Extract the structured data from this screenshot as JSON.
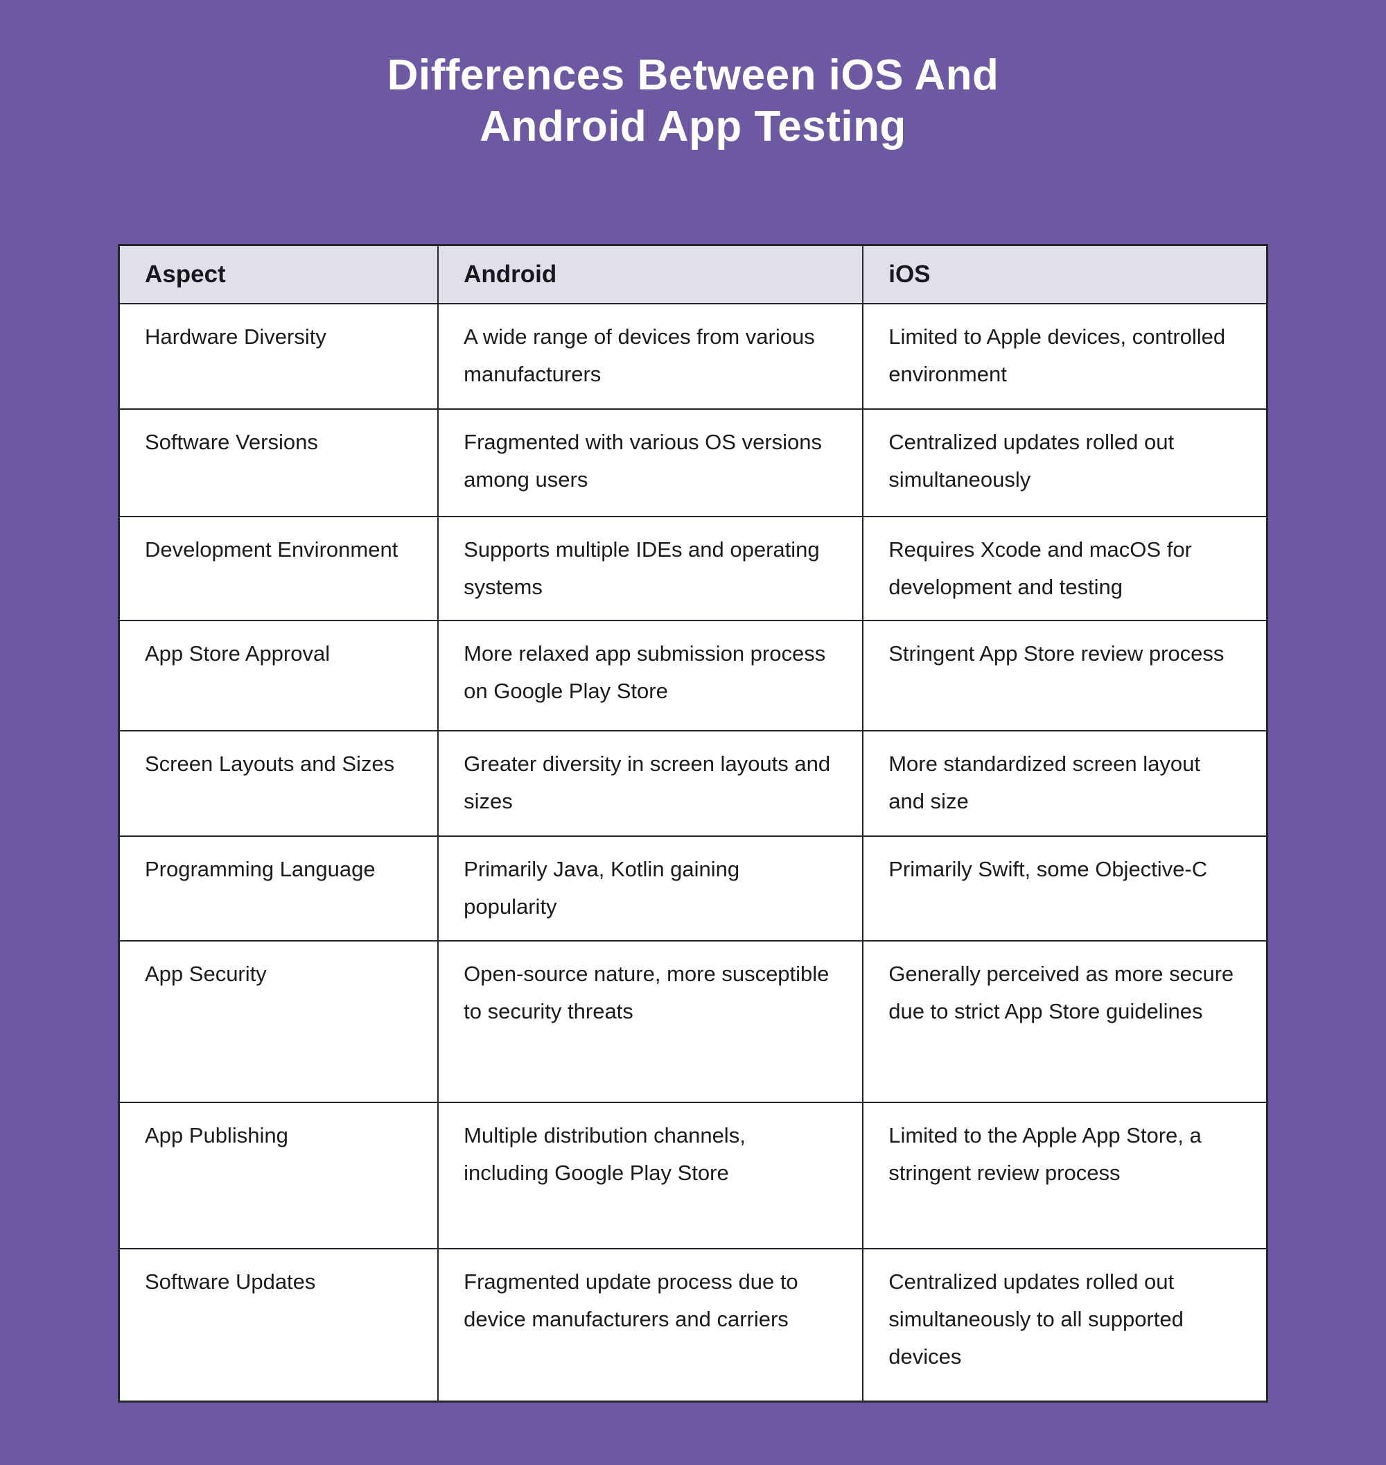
{
  "page": {
    "background_color": "#6d59a2",
    "title_color": "#ffffff",
    "title_line1": "Differences Between iOS And",
    "title_line2": "Android App Testing"
  },
  "table": {
    "header_bg_color": "#e2dfeb",
    "body_bg_color": "#ffffff",
    "border_color": "#26262e",
    "text_color": "#1b1b1f",
    "columns": [
      "Aspect",
      "Android",
      "iOS"
    ],
    "rows": [
      {
        "aspect": "Hardware Diversity",
        "android": "A wide range of devices from various manufacturers",
        "ios": "Limited to Apple devices, controlled environment"
      },
      {
        "aspect": "Software Versions",
        "android": "Fragmented with various OS versions among users",
        "ios": "Centralized updates rolled out simultaneously"
      },
      {
        "aspect": "Development Environment",
        "android": "Supports multiple IDEs and operating systems",
        "ios": "Requires Xcode and macOS for development and testing"
      },
      {
        "aspect": "App Store Approval",
        "android": "More relaxed app submission process on Google Play Store",
        "ios": "Stringent App Store review process"
      },
      {
        "aspect": "Screen Layouts and Sizes",
        "android": "Greater diversity in screen layouts and sizes",
        "ios": "More standardized screen layout and size"
      },
      {
        "aspect": "Programming Language",
        "android": "Primarily Java, Kotlin gaining popularity",
        "ios": "Primarily Swift, some Objective-C"
      },
      {
        "aspect": "App Security",
        "android": "Open-source nature, more susceptible to security threats",
        "ios": "Generally perceived as more secure due to strict App Store guidelines"
      },
      {
        "aspect": "App Publishing",
        "android": "Multiple distribution channels, including Google Play Store",
        "ios": "Limited to the Apple App Store, a stringent review process"
      },
      {
        "aspect": "Software Updates",
        "android": "Fragmented update process due to device manufacturers and carriers",
        "ios": "Centralized updates rolled out simultaneously to all supported devices"
      }
    ]
  }
}
